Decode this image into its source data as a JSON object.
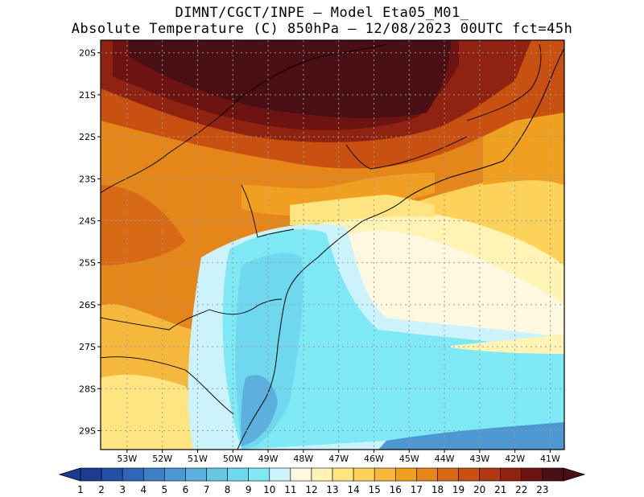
{
  "title": {
    "line1": "DIMNT/CGCT/INPE –  Model Eta05_M01_",
    "line2": "Absolute Temperature (C) 850hPa –  12/08/2023 00UTC fct=45h"
  },
  "map": {
    "variable": "Absolute Temperature",
    "units": "C",
    "level": "850hPa",
    "lon_range": [
      -53.75,
      -40.6
    ],
    "lat_range": [
      -29.45,
      -19.7
    ],
    "lon_ticks": [
      "53W",
      "52W",
      "51W",
      "50W",
      "49W",
      "48W",
      "47W",
      "46W",
      "45W",
      "44W",
      "43W",
      "42W",
      "41W"
    ],
    "lat_ticks": [
      "20S",
      "21S",
      "22S",
      "23S",
      "24S",
      "25S",
      "26S",
      "27S",
      "28S",
      "29S"
    ]
  },
  "colorbar": {
    "labels": [
      "1",
      "2",
      "3",
      "4",
      "5",
      "6",
      "7",
      "8",
      "9",
      "10",
      "11",
      "12",
      "13",
      "14",
      "15",
      "16",
      "17",
      "18",
      "19",
      "20",
      "21",
      "22",
      "23"
    ],
    "colors": [
      "#1f3b8f",
      "#2350a2",
      "#2f66b6",
      "#3d80c6",
      "#4d98d3",
      "#5bb0de",
      "#66c6e6",
      "#6fd8ee",
      "#7ee8f5",
      "#ccf2fb",
      "#fff8e0",
      "#fff3b5",
      "#ffe582",
      "#fcd25a",
      "#f6b83c",
      "#efa020",
      "#e48619",
      "#d86a15",
      "#c85010",
      "#b03810",
      "#8f2210",
      "#6d1412",
      "#4a0f14"
    ]
  },
  "colors": {
    "background": "#ffffff",
    "grid": "#9a9a9a",
    "coast": "#000000"
  }
}
